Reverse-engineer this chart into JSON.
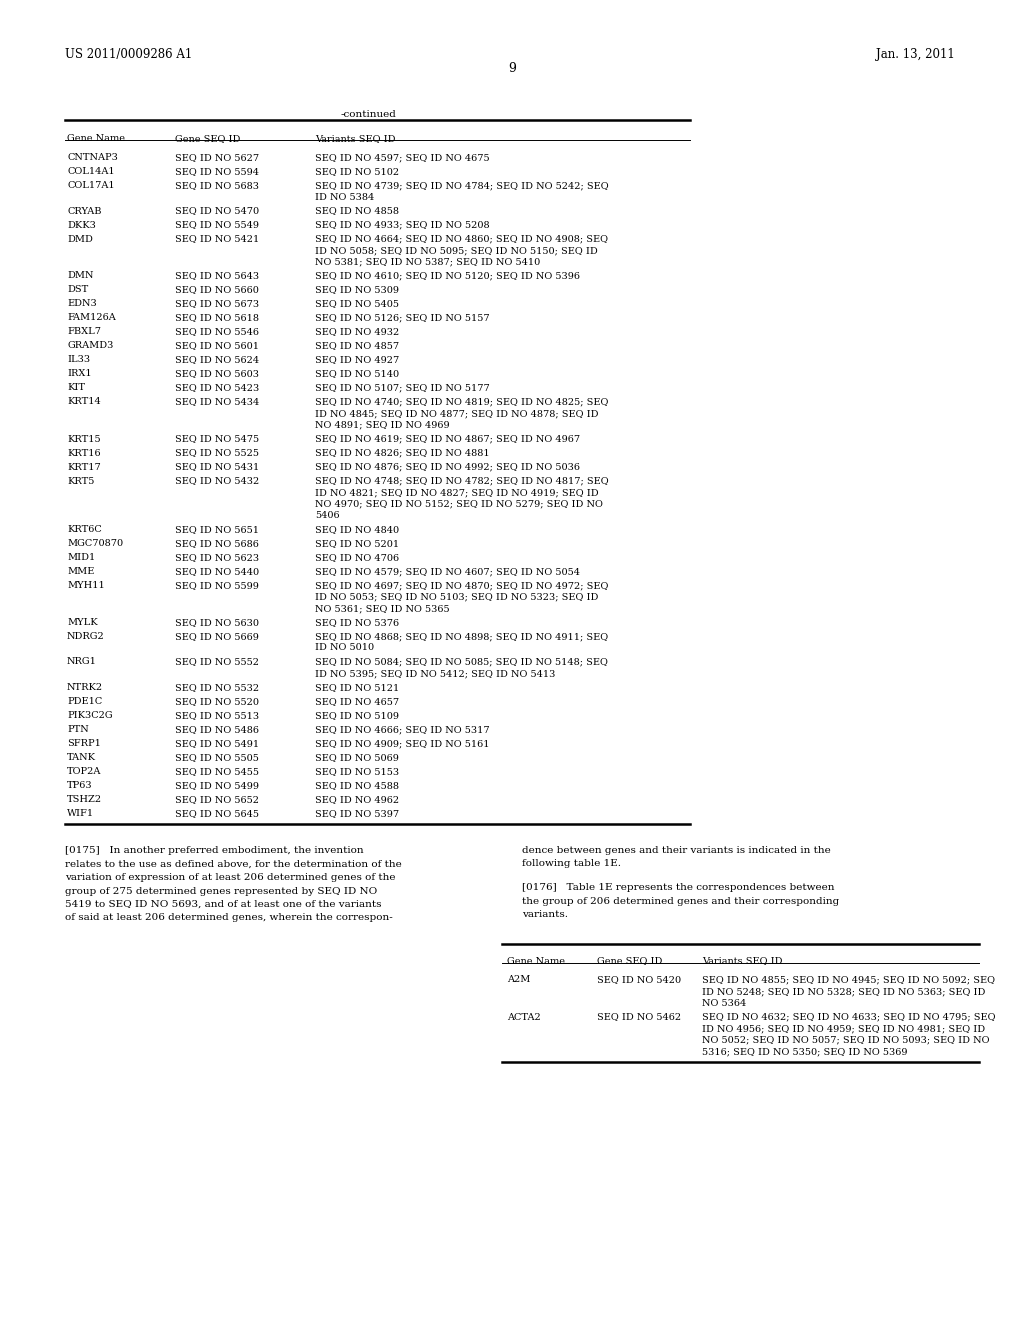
{
  "background_color": "#ffffff",
  "header_left": "US 2011/0009286 A1",
  "header_right": "Jan. 13, 2011",
  "page_number": "9",
  "continued_label": "-continued",
  "table1_columns": [
    "Gene Name",
    "Gene SEQ ID",
    "Variants SEQ ID"
  ],
  "table1_rows": [
    [
      "CNTNAP3",
      "SEQ ID NO 5627",
      "SEQ ID NO 4597; SEQ ID NO 4675"
    ],
    [
      "COL14A1",
      "SEQ ID NO 5594",
      "SEQ ID NO 5102"
    ],
    [
      "COL17A1",
      "SEQ ID NO 5683",
      "SEQ ID NO 4739; SEQ ID NO 4784; SEQ ID NO 5242; SEQ\nID NO 5384"
    ],
    [
      "CRYAB",
      "SEQ ID NO 5470",
      "SEQ ID NO 4858"
    ],
    [
      "DKK3",
      "SEQ ID NO 5549",
      "SEQ ID NO 4933; SEQ ID NO 5208"
    ],
    [
      "DMD",
      "SEQ ID NO 5421",
      "SEQ ID NO 4664; SEQ ID NO 4860; SEQ ID NO 4908; SEQ\nID NO 5058; SEQ ID NO 5095; SEQ ID NO 5150; SEQ ID\nNO 5381; SEQ ID NO 5387; SEQ ID NO 5410"
    ],
    [
      "DMN",
      "SEQ ID NO 5643",
      "SEQ ID NO 4610; SEQ ID NO 5120; SEQ ID NO 5396"
    ],
    [
      "DST",
      "SEQ ID NO 5660",
      "SEQ ID NO 5309"
    ],
    [
      "EDN3",
      "SEQ ID NO 5673",
      "SEQ ID NO 5405"
    ],
    [
      "FAM126A",
      "SEQ ID NO 5618",
      "SEQ ID NO 5126; SEQ ID NO 5157"
    ],
    [
      "FBXL7",
      "SEQ ID NO 5546",
      "SEQ ID NO 4932"
    ],
    [
      "GRAMD3",
      "SEQ ID NO 5601",
      "SEQ ID NO 4857"
    ],
    [
      "IL33",
      "SEQ ID NO 5624",
      "SEQ ID NO 4927"
    ],
    [
      "IRX1",
      "SEQ ID NO 5603",
      "SEQ ID NO 5140"
    ],
    [
      "KIT",
      "SEQ ID NO 5423",
      "SEQ ID NO 5107; SEQ ID NO 5177"
    ],
    [
      "KRT14",
      "SEQ ID NO 5434",
      "SEQ ID NO 4740; SEQ ID NO 4819; SEQ ID NO 4825; SEQ\nID NO 4845; SEQ ID NO 4877; SEQ ID NO 4878; SEQ ID\nNO 4891; SEQ ID NO 4969"
    ],
    [
      "KRT15",
      "SEQ ID NO 5475",
      "SEQ ID NO 4619; SEQ ID NO 4867; SEQ ID NO 4967"
    ],
    [
      "KRT16",
      "SEQ ID NO 5525",
      "SEQ ID NO 4826; SEQ ID NO 4881"
    ],
    [
      "KRT17",
      "SEQ ID NO 5431",
      "SEQ ID NO 4876; SEQ ID NO 4992; SEQ ID NO 5036"
    ],
    [
      "KRT5",
      "SEQ ID NO 5432",
      "SEQ ID NO 4748; SEQ ID NO 4782; SEQ ID NO 4817; SEQ\nID NO 4821; SEQ ID NO 4827; SEQ ID NO 4919; SEQ ID\nNO 4970; SEQ ID NO 5152; SEQ ID NO 5279; SEQ ID NO\n5406"
    ],
    [
      "KRT6C",
      "SEQ ID NO 5651",
      "SEQ ID NO 4840"
    ],
    [
      "MGC70870",
      "SEQ ID NO 5686",
      "SEQ ID NO 5201"
    ],
    [
      "MID1",
      "SEQ ID NO 5623",
      "SEQ ID NO 4706"
    ],
    [
      "MME",
      "SEQ ID NO 5440",
      "SEQ ID NO 4579; SEQ ID NO 4607; SEQ ID NO 5054"
    ],
    [
      "MYH11",
      "SEQ ID NO 5599",
      "SEQ ID NO 4697; SEQ ID NO 4870; SEQ ID NO 4972; SEQ\nID NO 5053; SEQ ID NO 5103; SEQ ID NO 5323; SEQ ID\nNO 5361; SEQ ID NO 5365"
    ],
    [
      "MYLK",
      "SEQ ID NO 5630",
      "SEQ ID NO 5376"
    ],
    [
      "NDRG2",
      "SEQ ID NO 5669",
      "SEQ ID NO 4868; SEQ ID NO 4898; SEQ ID NO 4911; SEQ\nID NO 5010"
    ],
    [
      "NRG1",
      "SEQ ID NO 5552",
      "SEQ ID NO 5084; SEQ ID NO 5085; SEQ ID NO 5148; SEQ\nID NO 5395; SEQ ID NO 5412; SEQ ID NO 5413"
    ],
    [
      "NTRK2",
      "SEQ ID NO 5532",
      "SEQ ID NO 5121"
    ],
    [
      "PDE1C",
      "SEQ ID NO 5520",
      "SEQ ID NO 4657"
    ],
    [
      "PIK3C2G",
      "SEQ ID NO 5513",
      "SEQ ID NO 5109"
    ],
    [
      "PTN",
      "SEQ ID NO 5486",
      "SEQ ID NO 4666; SEQ ID NO 5317"
    ],
    [
      "SFRP1",
      "SEQ ID NO 5491",
      "SEQ ID NO 4909; SEQ ID NO 5161"
    ],
    [
      "TANK",
      "SEQ ID NO 5505",
      "SEQ ID NO 5069"
    ],
    [
      "TOP2A",
      "SEQ ID NO 5455",
      "SEQ ID NO 5153"
    ],
    [
      "TP63",
      "SEQ ID NO 5499",
      "SEQ ID NO 4588"
    ],
    [
      "TSHZ2",
      "SEQ ID NO 5652",
      "SEQ ID NO 4962"
    ],
    [
      "WIF1",
      "SEQ ID NO 5645",
      "SEQ ID NO 5397"
    ]
  ],
  "para175_left": [
    "[0175]   In another preferred embodiment, the invention",
    "relates to the use as defined above, for the determination of the",
    "variation of expression of at least 206 determined genes of the",
    "group of 275 determined genes represented by SEQ ID NO",
    "5419 to SEQ ID NO 5693, and of at least one of the variants",
    "of said at least 206 determined genes, wherein the correspon-"
  ],
  "para175_right": [
    "dence between genes and their variants is indicated in the",
    "following table 1E."
  ],
  "para176_right": [
    "[0176]   Table 1E represents the correspondences between",
    "the group of 206 determined genes and their corresponding",
    "variants."
  ],
  "table2_columns": [
    "Gene Name",
    "Gene SEQ ID",
    "Variants SEQ ID"
  ],
  "table2_rows": [
    [
      "A2M",
      "SEQ ID NO 5420",
      "SEQ ID NO 4855; SEQ ID NO 4945; SEQ ID NO 5092; SEQ\nID NO 5248; SEQ ID NO 5328; SEQ ID NO 5363; SEQ ID\nNO 5364"
    ],
    [
      "ACTA2",
      "SEQ ID NO 5462",
      "SEQ ID NO 4632; SEQ ID NO 4633; SEQ ID NO 4795; SEQ\nID NO 4956; SEQ ID NO 4959; SEQ ID NO 4981; SEQ ID\nNO 5052; SEQ ID NO 5057; SEQ ID NO 5093; SEQ ID NO\n5316; SEQ ID NO 5350; SEQ ID NO 5369"
    ]
  ],
  "font_size_header": 8.5,
  "font_size_table": 7.0,
  "font_size_body": 7.5,
  "font_size_page": 9,
  "font_size_continued": 7.5
}
